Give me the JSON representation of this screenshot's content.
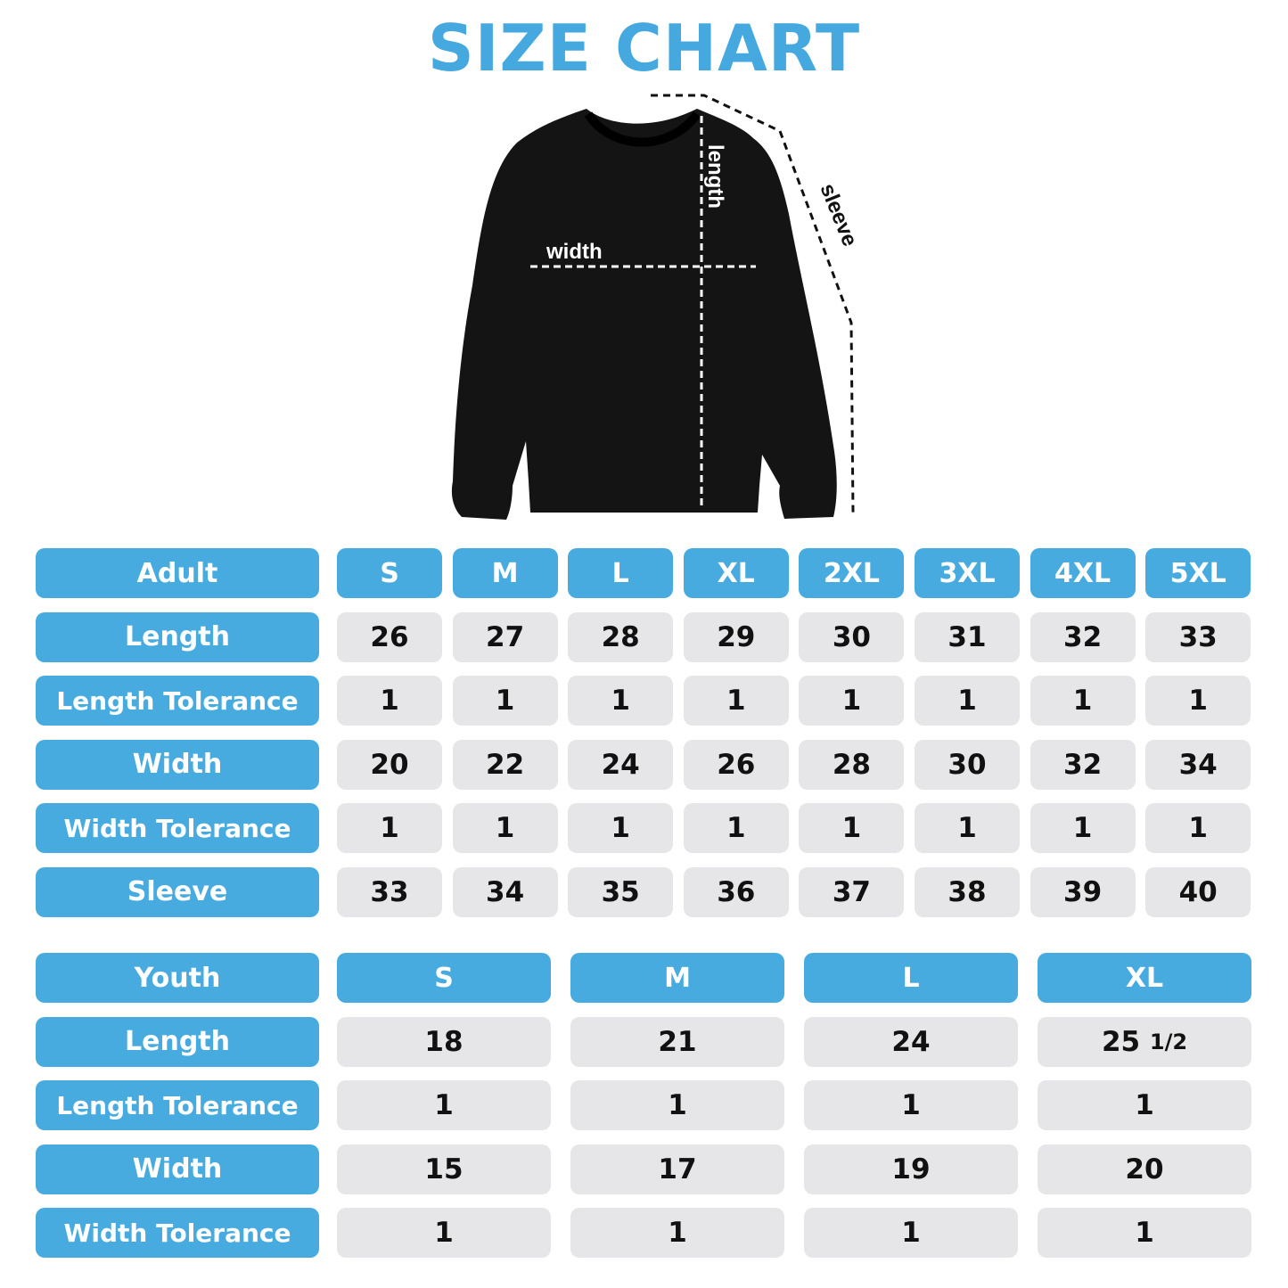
{
  "title": "SIZE CHART",
  "diagram": {
    "width_label": "width",
    "length_label": "length",
    "sleeve_label": "sleeve"
  },
  "colors": {
    "accent": "#48abe0",
    "cell": "#e6e6e8"
  },
  "adult": {
    "header": "Adult",
    "sizes": [
      "S",
      "M",
      "L",
      "XL",
      "2XL",
      "3XL",
      "4XL",
      "5XL"
    ],
    "rows": [
      {
        "label": "Length",
        "values": [
          "26",
          "27",
          "28",
          "29",
          "30",
          "31",
          "32",
          "33"
        ]
      },
      {
        "label": "Length Tolerance",
        "values": [
          "1",
          "1",
          "1",
          "1",
          "1",
          "1",
          "1",
          "1"
        ]
      },
      {
        "label": "Width",
        "values": [
          "20",
          "22",
          "24",
          "26",
          "28",
          "30",
          "32",
          "34"
        ]
      },
      {
        "label": "Width Tolerance",
        "values": [
          "1",
          "1",
          "1",
          "1",
          "1",
          "1",
          "1",
          "1"
        ]
      },
      {
        "label": "Sleeve",
        "values": [
          "33",
          "34",
          "35",
          "36",
          "37",
          "38",
          "39",
          "40"
        ]
      }
    ]
  },
  "youth": {
    "header": "Youth",
    "sizes": [
      "S",
      "M",
      "L",
      "XL"
    ],
    "rows": [
      {
        "label": "Length",
        "values": [
          "18",
          "21",
          "24",
          "25 1/2"
        ]
      },
      {
        "label": "Length Tolerance",
        "values": [
          "1",
          "1",
          "1",
          "1"
        ]
      },
      {
        "label": "Width",
        "values": [
          "15",
          "17",
          "19",
          "20"
        ]
      },
      {
        "label": "Width Tolerance",
        "values": [
          "1",
          "1",
          "1",
          "1"
        ]
      }
    ]
  }
}
